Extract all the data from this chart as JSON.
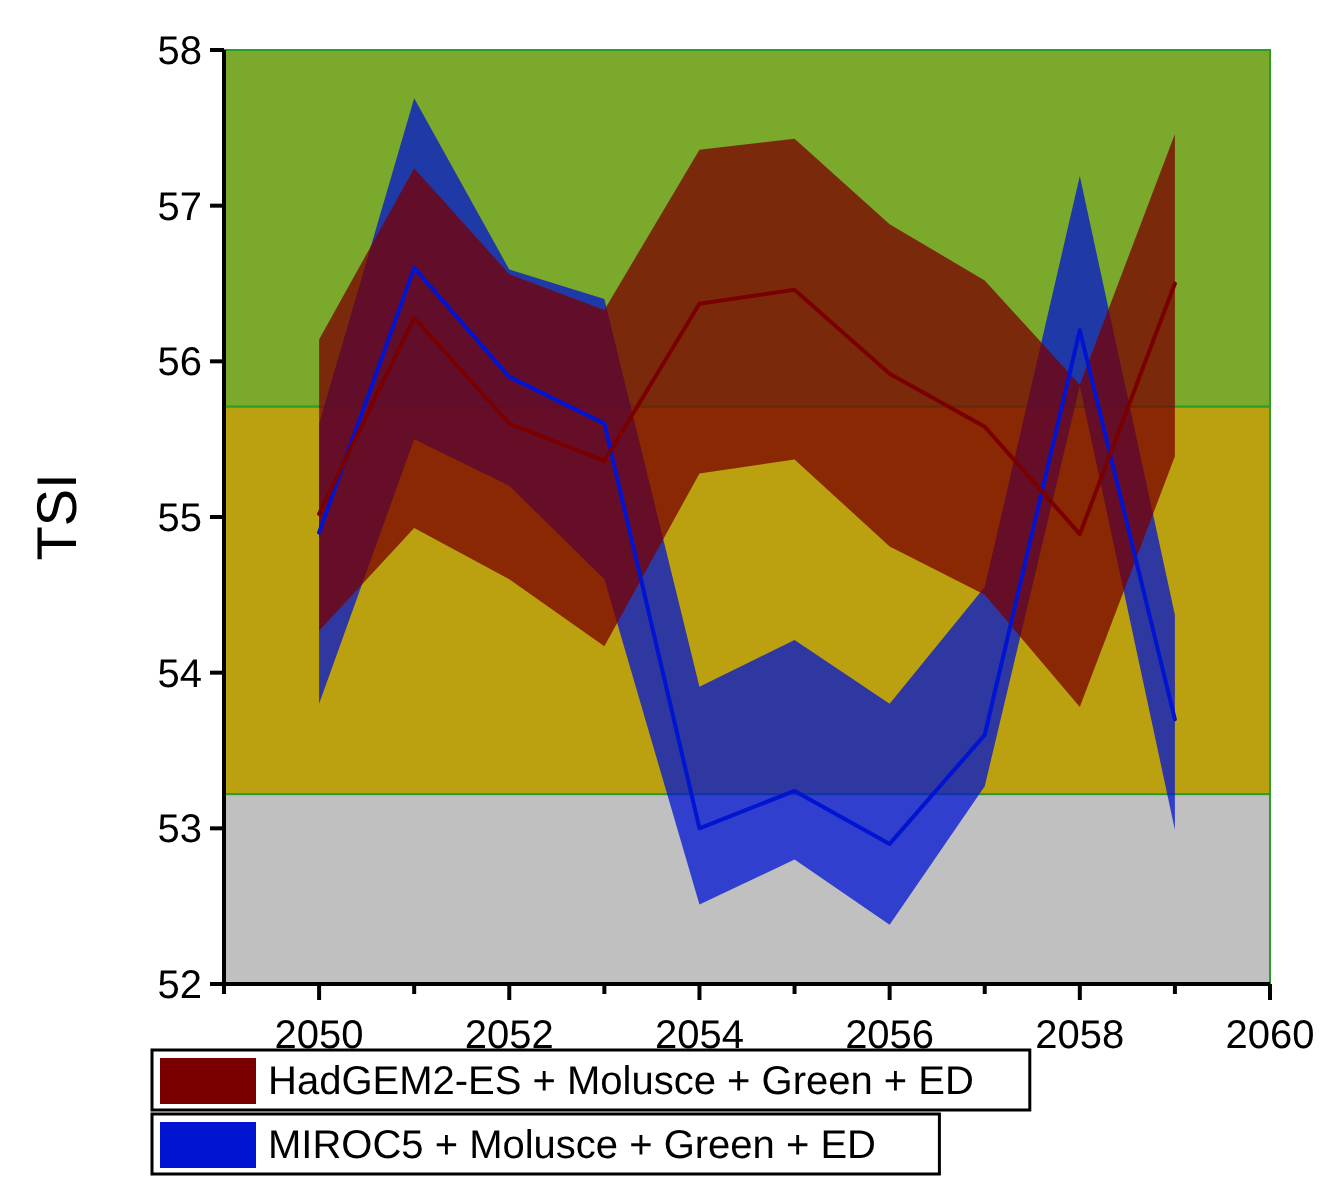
{
  "chart_data": {
    "type": "line",
    "ylabel": "TSI",
    "x": [
      2050,
      2051,
      2052,
      2053,
      2054,
      2055,
      2056,
      2057,
      2058,
      2059
    ],
    "xlim": [
      2049,
      2060
    ],
    "xticks": [
      {
        "value": 2049,
        "label": null
      },
      2050,
      {
        "value": 2051,
        "label": null
      },
      2052,
      {
        "value": 2053,
        "label": null
      },
      2054,
      {
        "value": 2055,
        "label": null
      },
      2056,
      {
        "value": 2057,
        "label": null
      },
      2058,
      {
        "value": 2059,
        "label": null
      },
      2060
    ],
    "ylim": [
      52,
      58
    ],
    "yticks": [
      52,
      53,
      54,
      55,
      56,
      57,
      58
    ],
    "bands": [
      {
        "axis": "y",
        "from": 52,
        "to": 53.22,
        "color": "#c0c0c0"
      },
      {
        "axis": "y",
        "from": 53.22,
        "to": 55.71,
        "color": "#bba10f"
      },
      {
        "axis": "y",
        "from": 55.71,
        "to": 58,
        "color": "#7ba92b"
      }
    ],
    "series": [
      {
        "name": "MIROC5 + Molusce + Green + ED",
        "color": "#0014d2",
        "values": [
          54.9,
          56.6,
          55.9,
          55.6,
          53.0,
          53.24,
          52.9,
          53.6,
          56.2,
          53.7
        ],
        "lower": [
          53.8,
          55.5,
          55.2,
          54.6,
          52.51,
          52.8,
          52.38,
          53.27,
          55.84,
          52.99
        ],
        "upper": [
          55.6,
          57.69,
          56.59,
          56.4,
          53.91,
          54.21,
          53.8,
          54.55,
          57.19,
          54.37
        ]
      },
      {
        "name": "HadGEM2-ES + Molusce + Green + ED",
        "color": "#7a0000",
        "values": [
          55.02,
          56.28,
          55.6,
          55.36,
          56.37,
          56.46,
          55.92,
          55.58,
          54.89,
          56.5
        ],
        "lower": [
          54.27,
          54.93,
          54.6,
          54.17,
          55.28,
          55.37,
          54.81,
          54.5,
          53.78,
          55.39
        ],
        "upper": [
          56.14,
          57.24,
          56.56,
          56.33,
          57.36,
          57.43,
          56.88,
          56.52,
          55.85,
          57.46
        ]
      }
    ],
    "legend": "bottom",
    "grid": false
  }
}
